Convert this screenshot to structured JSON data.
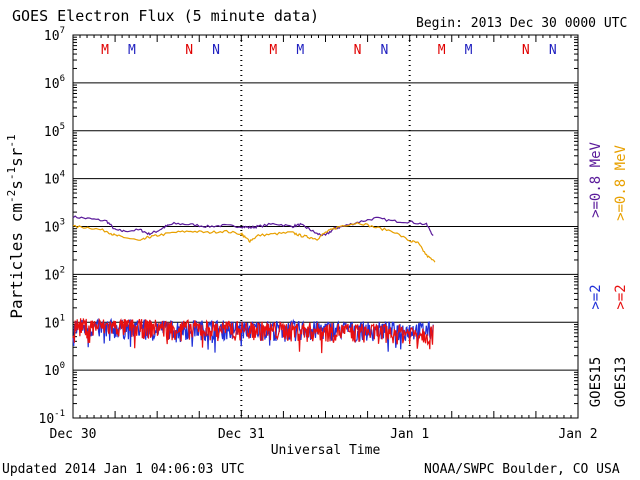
{
  "header": {
    "title": "GOES Electron Flux (5 minute data)",
    "begin": "Begin: 2013 Dec 30 0000 UTC"
  },
  "footer": {
    "updated": "Updated 2014 Jan  1 04:06:03 UTC",
    "source": "NOAA/SWPC Boulder, CO USA"
  },
  "chart_data": {
    "type": "line",
    "title": "GOES Electron Flux (5 minute data)",
    "xlabel": "Universal Time",
    "ylabel": "Particles cm-2s-1sr-1",
    "yscale": "log",
    "ylim": [
      0.1,
      10000000
    ],
    "xlim_days": [
      0,
      3
    ],
    "x_ticks": [
      {
        "day": 0,
        "label": "Dec 30"
      },
      {
        "day": 1,
        "label": "Dec 31"
      },
      {
        "day": 2,
        "label": "Jan 1"
      },
      {
        "day": 3,
        "label": "Jan 2"
      }
    ],
    "y_ticks": [
      {
        "base": "10",
        "exp": "7",
        "value": 10000000
      },
      {
        "base": "10",
        "exp": "6",
        "value": 1000000
      },
      {
        "base": "10",
        "exp": "5",
        "value": 100000
      },
      {
        "base": "10",
        "exp": "4",
        "value": 10000
      },
      {
        "base": "10",
        "exp": "3",
        "value": 1000
      },
      {
        "base": "10",
        "exp": "2",
        "value": 100
      },
      {
        "base": "10",
        "exp": "1",
        "value": 10
      },
      {
        "base": "10",
        "exp": "0",
        "value": 1
      },
      {
        "base": "10",
        "exp": "-1",
        "value": 0.1
      }
    ],
    "threshold": 1000,
    "markers": [
      {
        "day": 0.19,
        "label": "M",
        "color": "#e00000"
      },
      {
        "day": 0.35,
        "label": "M",
        "color": "#2020c0"
      },
      {
        "day": 0.69,
        "label": "N",
        "color": "#e00000"
      },
      {
        "day": 0.85,
        "label": "N",
        "color": "#2020c0"
      },
      {
        "day": 1.19,
        "label": "M",
        "color": "#e00000"
      },
      {
        "day": 1.35,
        "label": "M",
        "color": "#2020c0"
      },
      {
        "day": 1.69,
        "label": "N",
        "color": "#e00000"
      },
      {
        "day": 1.85,
        "label": "N",
        "color": "#2020c0"
      },
      {
        "day": 2.19,
        "label": "M",
        "color": "#e00000"
      },
      {
        "day": 2.35,
        "label": "M",
        "color": "#2020c0"
      },
      {
        "day": 2.69,
        "label": "N",
        "color": "#e00000"
      },
      {
        "day": 2.85,
        "label": "N",
        "color": "#2020c0"
      }
    ],
    "series": [
      {
        "name": "GOES15 >=0.8 MeV",
        "color": "#5a1a9a",
        "x": [
          0,
          0.1,
          0.2,
          0.25,
          0.3,
          0.4,
          0.45,
          0.5,
          0.55,
          0.6,
          0.7,
          0.8,
          0.9,
          1.0,
          1.05,
          1.1,
          1.2,
          1.3,
          1.35,
          1.4,
          1.45,
          1.5,
          1.55,
          1.6,
          1.7,
          1.8,
          1.9,
          2.0,
          2.1,
          2.14
        ],
        "y": [
          1600,
          1450,
          1300,
          850,
          800,
          850,
          700,
          800,
          1000,
          1150,
          1100,
          1000,
          1050,
          1000,
          950,
          1000,
          1150,
          1000,
          1100,
          900,
          700,
          650,
          900,
          1000,
          1250,
          1500,
          1300,
          1250,
          1100,
          650
        ]
      },
      {
        "name": "GOES13 >=0.8 MeV",
        "color": "#e8a000",
        "x": [
          0,
          0.1,
          0.2,
          0.25,
          0.3,
          0.4,
          0.45,
          0.5,
          0.6,
          0.7,
          0.8,
          0.9,
          1.0,
          1.02,
          1.05,
          1.1,
          1.2,
          1.3,
          1.35,
          1.4,
          1.45,
          1.5,
          1.55,
          1.6,
          1.7,
          1.8,
          1.9,
          2.0,
          2.05,
          2.1,
          2.15
        ],
        "y": [
          1000,
          950,
          800,
          650,
          600,
          500,
          600,
          650,
          750,
          800,
          750,
          800,
          700,
          600,
          500,
          650,
          700,
          750,
          650,
          600,
          550,
          750,
          900,
          1050,
          1200,
          950,
          800,
          500,
          450,
          250,
          180
        ]
      },
      {
        "name": "GOES15 >=2 MeV",
        "color": "#2030d8",
        "x": [
          0,
          2.14
        ],
        "y": [
          8,
          7
        ],
        "noisy": true
      },
      {
        "name": "GOES13 >=2 MeV",
        "color": "#e81010",
        "x": [
          0,
          2.14
        ],
        "y": [
          8.5,
          6
        ],
        "noisy": true
      }
    ],
    "legend": [
      {
        "label": ">=0.8 MeV",
        "color": "#5a1a9a"
      },
      {
        "label": ">=0.8 MeV",
        "color": "#e8a000"
      },
      {
        "label": ">=2",
        "color": "#2030d8"
      },
      {
        "label": ">=2",
        "color": "#e81010"
      },
      {
        "label": "GOES15",
        "color": "#000000"
      },
      {
        "label": "GOES13",
        "color": "#000000"
      }
    ]
  }
}
